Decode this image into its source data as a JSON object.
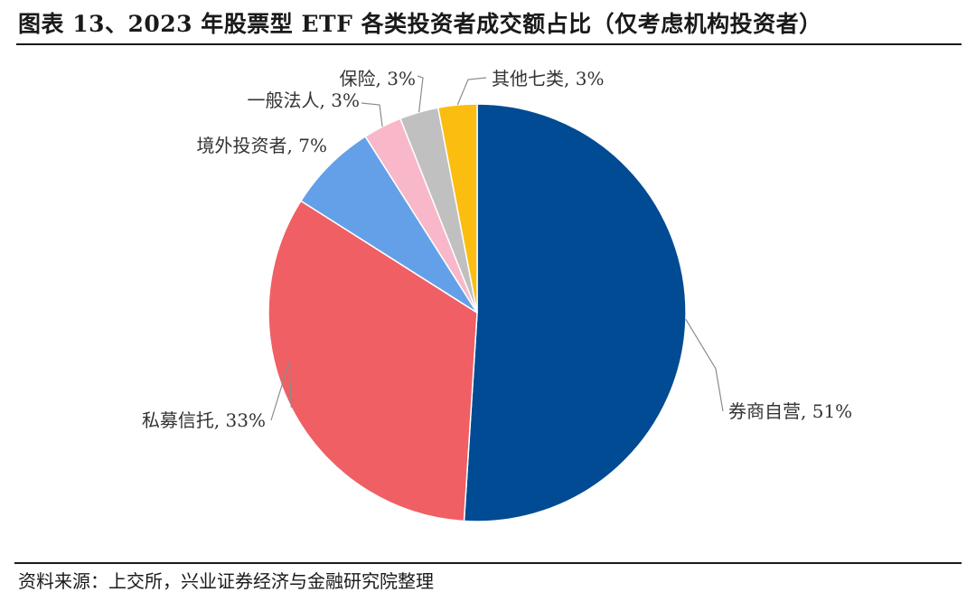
{
  "title": "图表 13、2023 年股票型 ETF 各类投资者成交额占比（仅考虑机构投资者）",
  "source": "资料来源：上交所，兴业证券经济与金融研究院整理",
  "chart_data": {
    "type": "pie",
    "title": "",
    "start_angle": "12 o'clock",
    "direction": "clockwise",
    "slices": [
      {
        "label": "券商自营, 51%",
        "name": "券商自营",
        "value": 51,
        "color": "#004b93"
      },
      {
        "label": "私募信托, 33%",
        "name": "私募信托",
        "value": 33,
        "color": "#ef5f64"
      },
      {
        "label": "境外投资者, 7%",
        "name": "境外投资者",
        "value": 7,
        "color": "#63a0e8"
      },
      {
        "label": "一般法人, 3%",
        "name": "一般法人",
        "value": 3,
        "color": "#f8b8c9"
      },
      {
        "label": "保险, 3%",
        "name": "保险",
        "value": 3,
        "color": "#c0c0c0"
      },
      {
        "label": "其他七类, 3%",
        "name": "其他七类",
        "value": 3,
        "color": "#fbbd10"
      }
    ]
  }
}
